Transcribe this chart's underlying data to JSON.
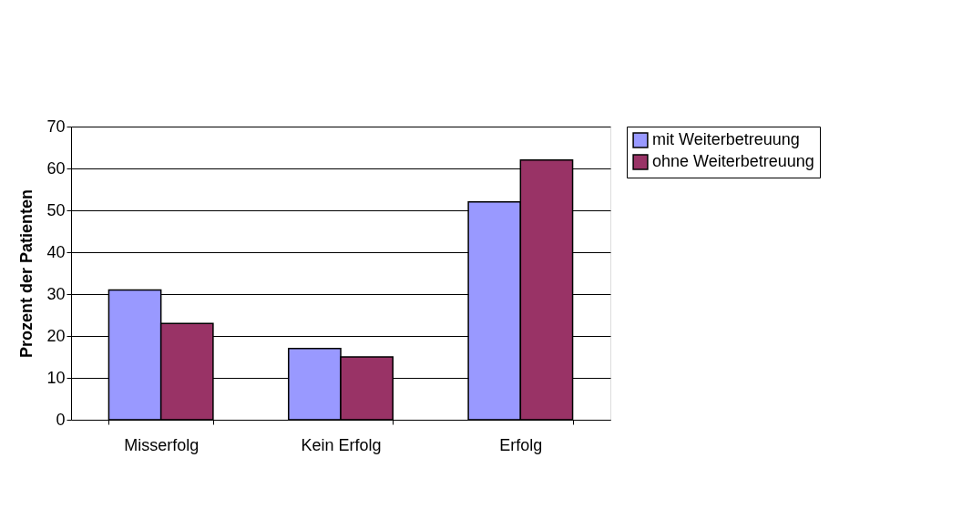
{
  "chart_data": {
    "type": "bar",
    "ylabel": "Prozent der Patienten",
    "categories": [
      "Misserfolg",
      "Kein Erfolg",
      "Erfolg"
    ],
    "series": [
      {
        "name": "mit Weiterbetreuung",
        "color": "#9999ff",
        "values": [
          31,
          17,
          52
        ]
      },
      {
        "name": "ohne Weiterbetreuung",
        "color": "#993366",
        "values": [
          23,
          15,
          62
        ]
      }
    ],
    "ylim": [
      0,
      70
    ],
    "yticks": [
      0,
      10,
      20,
      30,
      40,
      50,
      60,
      70
    ],
    "grid": "y",
    "legend": "right"
  }
}
